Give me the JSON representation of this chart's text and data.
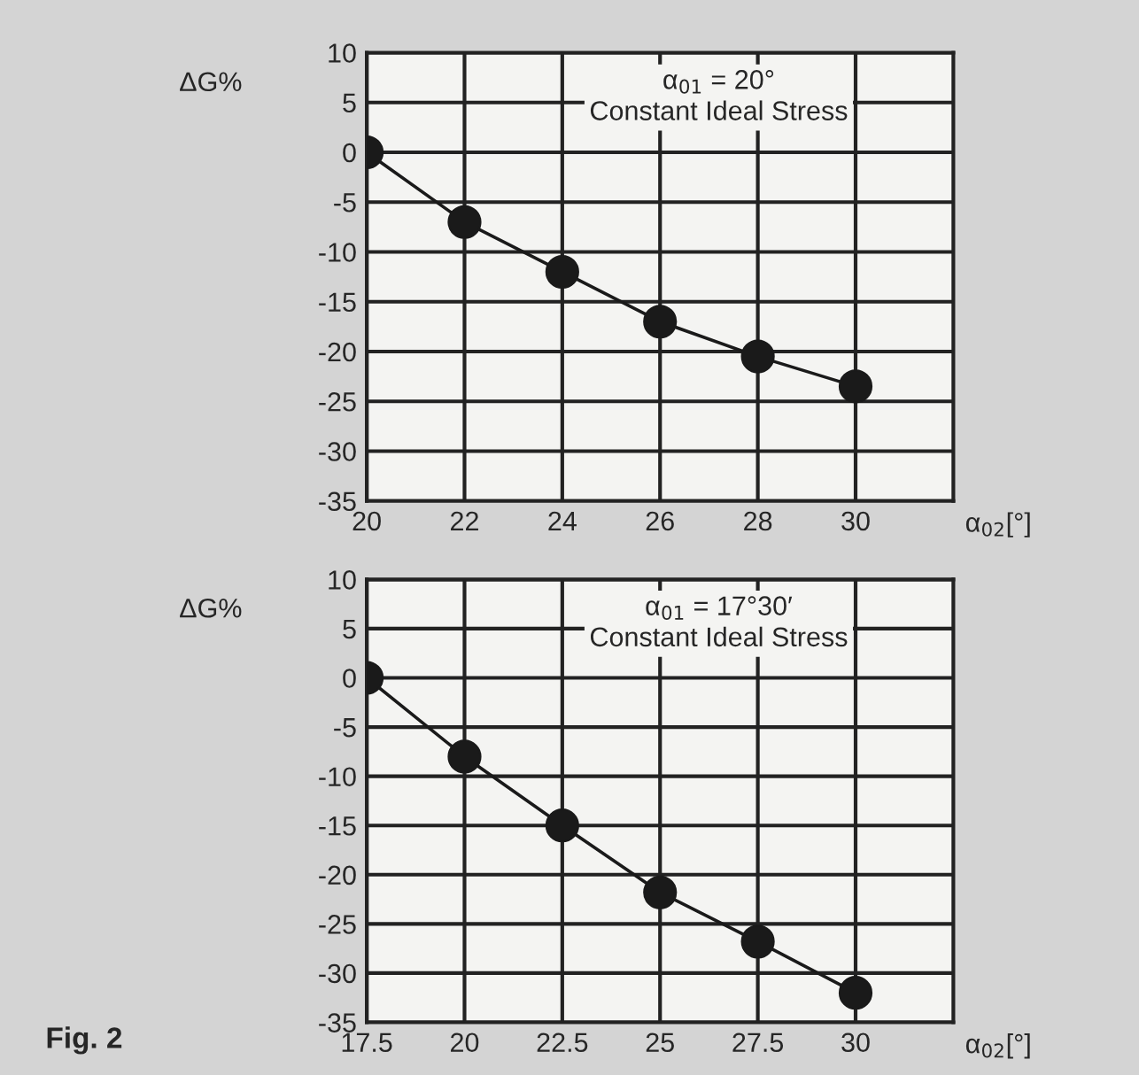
{
  "chart_data": [
    {
      "type": "line",
      "ylabel": "ΔG%",
      "xlabel": "α$_{02}$[°]",
      "annotations": [
        "α$_{01}$ = 20°\nConstant Ideal Stress"
      ],
      "x": [
        20,
        22,
        24,
        26,
        28,
        30
      ],
      "series": [
        {
          "color": "#1a1a1a",
          "values": [
            0,
            -7,
            -12,
            -17,
            -20.5,
            -23.5
          ]
        }
      ],
      "xlim": [
        20,
        32
      ],
      "xticks": [
        20,
        22,
        24,
        26,
        28,
        30
      ],
      "ylim": [
        -35,
        10
      ],
      "yticks": [
        -35,
        -30,
        -25,
        -20,
        -15,
        -10,
        -5,
        0,
        5,
        10
      ],
      "grid": true,
      "marker": "circle",
      "line_style": "solid",
      "legend": false
    },
    {
      "type": "line",
      "ylabel": "ΔG%",
      "xlabel": "α$_{02}$[°]",
      "annotations": [
        "α$_{01}$ = 17°30′\nConstant Ideal Stress",
        "Fig. 2"
      ],
      "x": [
        17.5,
        20,
        22.5,
        25,
        27.5,
        30
      ],
      "series": [
        {
          "color": "#1a1a1a",
          "values": [
            0,
            -8,
            -15,
            -21.8,
            -26.8,
            -32
          ]
        }
      ],
      "xlim": [
        17.5,
        32.5
      ],
      "xticks": [
        17.5,
        20,
        22.5,
        25,
        27.5,
        30
      ],
      "ylim": [
        -35,
        10
      ],
      "yticks": [
        -35,
        -30,
        -25,
        -20,
        -15,
        -10,
        -5,
        0,
        5,
        10
      ],
      "grid": true,
      "marker": "circle",
      "line_style": "solid",
      "legend": false
    }
  ]
}
